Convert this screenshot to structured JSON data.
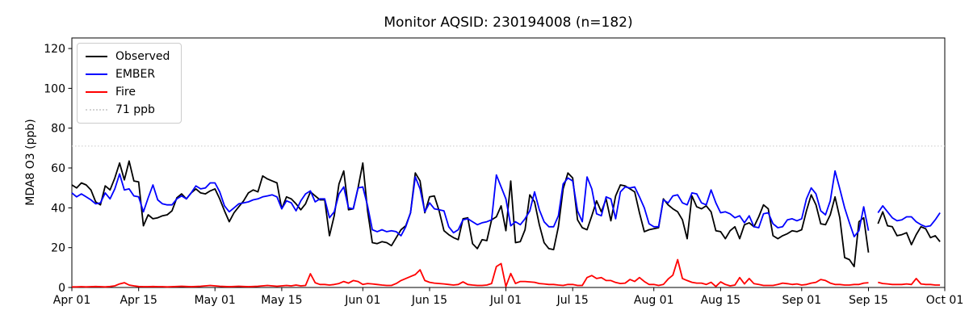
{
  "chart_data": {
    "type": "line",
    "title": "Monitor AQSID: 230194008 (n=182)",
    "xlabel": "",
    "ylabel": "MDA8 O3 (ppb)",
    "x_unit": "day index from Apr 01",
    "x_range_days": [
      0,
      183
    ],
    "ylim": [
      0,
      125.3
    ],
    "y_ticks": [
      0,
      20,
      40,
      60,
      80,
      100,
      120
    ],
    "x_ticks": [
      {
        "day": 0,
        "label": "Apr 01"
      },
      {
        "day": 14,
        "label": "Apr 15"
      },
      {
        "day": 30,
        "label": "May 01"
      },
      {
        "day": 44,
        "label": "May 15"
      },
      {
        "day": 61,
        "label": "Jun 01"
      },
      {
        "day": 75,
        "label": "Jun 15"
      },
      {
        "day": 91,
        "label": "Jul 01"
      },
      {
        "day": 105,
        "label": "Jul 15"
      },
      {
        "day": 122,
        "label": "Aug 01"
      },
      {
        "day": 136,
        "label": "Aug 15"
      },
      {
        "day": 153,
        "label": "Sep 01"
      },
      {
        "day": 167,
        "label": "Sep 15"
      },
      {
        "day": 183,
        "label": "Oct 01"
      }
    ],
    "threshold": {
      "value": 71,
      "label": "71 ppb",
      "color": "#d3d3d3",
      "style": "dotted"
    },
    "legend": {
      "position": "upper-left",
      "items": [
        {
          "label": "Observed",
          "color": "#000000",
          "style": "solid"
        },
        {
          "label": "EMBER",
          "color": "#0000ff",
          "style": "solid"
        },
        {
          "label": "Fire",
          "color": "#ff0000",
          "style": "solid"
        },
        {
          "label": "71 ppb",
          "color": "#d3d3d3",
          "style": "dotted"
        }
      ]
    },
    "series": [
      {
        "name": "Observed",
        "color": "#000000",
        "values": [
          51.5,
          50,
          52.5,
          51.5,
          49,
          43,
          41.5,
          51,
          49,
          55,
          62.5,
          54,
          63.5,
          53.5,
          53,
          31,
          36.5,
          34.5,
          35,
          36,
          36.5,
          38.5,
          45,
          47,
          44.5,
          47.5,
          49.5,
          47.5,
          47,
          48.5,
          49.5,
          44.5,
          38.5,
          33,
          37.5,
          40.5,
          43.5,
          47.5,
          49,
          48,
          56,
          54.5,
          53.5,
          52.5,
          39.5,
          45.5,
          44.5,
          42,
          39,
          42,
          48,
          46,
          44,
          44,
          26,
          36,
          52,
          58.5,
          39,
          39.5,
          50,
          62.5,
          38.5,
          22.5,
          22,
          23,
          22.5,
          21,
          25,
          29,
          31,
          37.5,
          57.5,
          53.5,
          37.5,
          45.5,
          46,
          38.5,
          28.5,
          26.5,
          25,
          24,
          34.5,
          35,
          22,
          19.5,
          24,
          23.5,
          34,
          35.5,
          41,
          28.5,
          53.5,
          22.5,
          23,
          29,
          46.5,
          43,
          31.5,
          22.5,
          19.5,
          19,
          30.5,
          49.5,
          57.5,
          55,
          34,
          30,
          29,
          36,
          43.5,
          38,
          44.5,
          33.5,
          46,
          51.5,
          51,
          49.5,
          48,
          37.5,
          28,
          29,
          29.5,
          30,
          44.5,
          41.5,
          39.5,
          38,
          34,
          24.5,
          46,
          40.5,
          39.5,
          41,
          38,
          28.5,
          28,
          24.5,
          28.5,
          30.5,
          24.5,
          31.5,
          32.5,
          30.5,
          35.5,
          41.5,
          39.5,
          26,
          24.5,
          26,
          27,
          28.5,
          28,
          29,
          38.5,
          46.5,
          41.5,
          32,
          31.5,
          36.5,
          45.5,
          35,
          15,
          14,
          10.5,
          33,
          35,
          17.5,
          null,
          32,
          38,
          31,
          30.5,
          26,
          26.5,
          27.5,
          21.5,
          26.5,
          30.5,
          29.5,
          25,
          26,
          23
        ]
      },
      {
        "name": "EMBER",
        "color": "#0000ff",
        "values": [
          47.5,
          45.5,
          47,
          45.5,
          44,
          42,
          42.5,
          47.5,
          44.5,
          49.5,
          57,
          49,
          49.5,
          46,
          45.5,
          38,
          45,
          51.5,
          44,
          42,
          41.5,
          41.5,
          44.5,
          46,
          44.5,
          47.5,
          51,
          49.5,
          50,
          52.5,
          52.5,
          48,
          41,
          38,
          40,
          42,
          42.5,
          43,
          44,
          44.5,
          45.5,
          46,
          46.5,
          45.5,
          39.5,
          43.5,
          42.5,
          38.5,
          43.5,
          47,
          48.5,
          43,
          44.5,
          44.5,
          35,
          38,
          47,
          50.5,
          40,
          39.5,
          50,
          50.5,
          41,
          29,
          28,
          29,
          28,
          28.5,
          28,
          26,
          30.5,
          37.5,
          55.5,
          49.5,
          38,
          42.5,
          39.5,
          39,
          38.5,
          30.5,
          27.5,
          29,
          34,
          34.5,
          33,
          31.5,
          32.5,
          33,
          34,
          56.5,
          50.5,
          44.5,
          31,
          33,
          31.5,
          34.5,
          38.5,
          48,
          39,
          33,
          30.5,
          30.5,
          36,
          52,
          55,
          53.5,
          38.5,
          33,
          55.5,
          49.5,
          37,
          36,
          45.5,
          44.5,
          34.5,
          48,
          50.5,
          50,
          50.5,
          45.5,
          40,
          32,
          30.5,
          30.5,
          44,
          42.5,
          46,
          46.5,
          42.5,
          41.5,
          47.5,
          47,
          42.5,
          41.5,
          49,
          42.5,
          37.5,
          38,
          37,
          35,
          36,
          32.5,
          36,
          30.5,
          30,
          37,
          37.5,
          32,
          30,
          30.5,
          34,
          34.5,
          33.5,
          34.5,
          44.5,
          50,
          47,
          38.5,
          36.5,
          43.5,
          58.5,
          49.5,
          40,
          32.5,
          25.5,
          28.5,
          40.5,
          28.5,
          null,
          37.5,
          41,
          38,
          35,
          33.5,
          34,
          35.5,
          35.5,
          33,
          31.5,
          30.5,
          31,
          34,
          37.5
        ]
      },
      {
        "name": "Fire",
        "color": "#ff0000",
        "values": [
          0.3,
          0.3,
          0.4,
          0.3,
          0.4,
          0.5,
          0.4,
          0.3,
          0.5,
          0.8,
          1.8,
          2.4,
          1.2,
          0.8,
          0.5,
          0.4,
          0.4,
          0.5,
          0.4,
          0.4,
          0.3,
          0.4,
          0.5,
          0.6,
          0.5,
          0.4,
          0.5,
          0.6,
          0.8,
          1,
          0.8,
          0.6,
          0.5,
          0.4,
          0.5,
          0.6,
          0.5,
          0.4,
          0.5,
          0.6,
          0.8,
          1,
          0.8,
          0.6,
          0.8,
          1,
          0.8,
          1.2,
          0.8,
          1,
          6.9,
          2.4,
          1.5,
          1.5,
          1.2,
          1.5,
          2,
          3,
          2.2,
          3.5,
          3,
          1.5,
          2,
          1.8,
          1.5,
          1.2,
          1,
          1,
          2,
          3.5,
          4.5,
          5.5,
          6.5,
          8.9,
          3.5,
          2.6,
          2.2,
          2,
          1.8,
          1.5,
          1.2,
          1.5,
          2.8,
          1.5,
          1.2,
          1,
          1,
          1.2,
          2,
          10.5,
          12,
          0.5,
          7,
          2,
          3,
          3,
          2.8,
          2.6,
          2,
          1.8,
          1.5,
          1.5,
          1.2,
          1,
          1.5,
          1.5,
          1,
          1,
          5,
          6,
          4.5,
          5,
          3.5,
          3.5,
          2.5,
          2,
          2.2,
          4,
          3,
          5,
          3,
          1.5,
          1.5,
          1,
          1.5,
          4.2,
          6.2,
          14,
          4.5,
          3.5,
          2.6,
          2.2,
          2.2,
          1.5,
          2.6,
          0.5,
          2.8,
          1.5,
          0.8,
          1.2,
          5,
          1.8,
          4.5,
          1.9,
          1.5,
          1,
          1,
          1,
          1.5,
          2.2,
          1.9,
          1.5,
          1.8,
          1.2,
          1.5,
          2.2,
          2.6,
          4,
          3.5,
          2.2,
          1.5,
          1.5,
          1.2,
          1.2,
          1.5,
          1.5,
          2.2,
          2.4,
          null,
          2.6,
          2,
          1.8,
          1.5,
          1.5,
          1.5,
          1.8,
          1.5,
          4.5,
          1.8,
          1.5,
          1.5,
          1.2,
          1.2
        ]
      }
    ]
  }
}
